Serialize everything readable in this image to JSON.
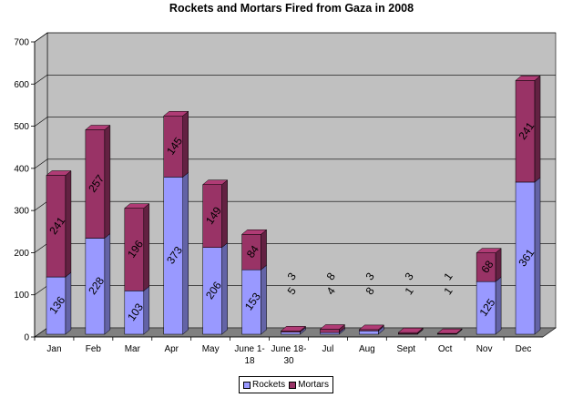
{
  "chart_data": {
    "type": "bar",
    "stacked": true,
    "style": "3d",
    "title": "Rockets and Mortars Fired from Gaza in 2008",
    "xlabel": "",
    "ylabel": "",
    "ylim": [
      0,
      700
    ],
    "yticks": [
      "0",
      "100",
      "200",
      "300",
      "400",
      "500",
      "600",
      "700"
    ],
    "grid": true,
    "legend_position": "bottom",
    "categories": [
      "Jan",
      "Feb",
      "Mar",
      "Apr",
      "May",
      "June 1-\n18",
      "June 18-\n30",
      "Jul",
      "Aug",
      "Sept",
      "Oct",
      "Nov",
      "Dec"
    ],
    "series": [
      {
        "name": "Rockets",
        "color": "#9999FF",
        "values": [
          136,
          228,
          103,
          373,
          206,
          153,
          5,
          4,
          8,
          1,
          1,
          125,
          361
        ],
        "labels": [
          "136",
          "228",
          "103",
          "373",
          "206",
          "153",
          "5",
          "4",
          "8",
          "1",
          "1",
          "125",
          "361"
        ]
      },
      {
        "name": "Mortars",
        "color": "#993366",
        "values": [
          241,
          257,
          196,
          145,
          149,
          84,
          3,
          8,
          3,
          3,
          1,
          68,
          241
        ],
        "labels": [
          "241",
          "257",
          "196",
          "145",
          "149",
          "84",
          "3",
          "8",
          "3",
          "3",
          "1",
          "68",
          "241"
        ]
      }
    ]
  }
}
